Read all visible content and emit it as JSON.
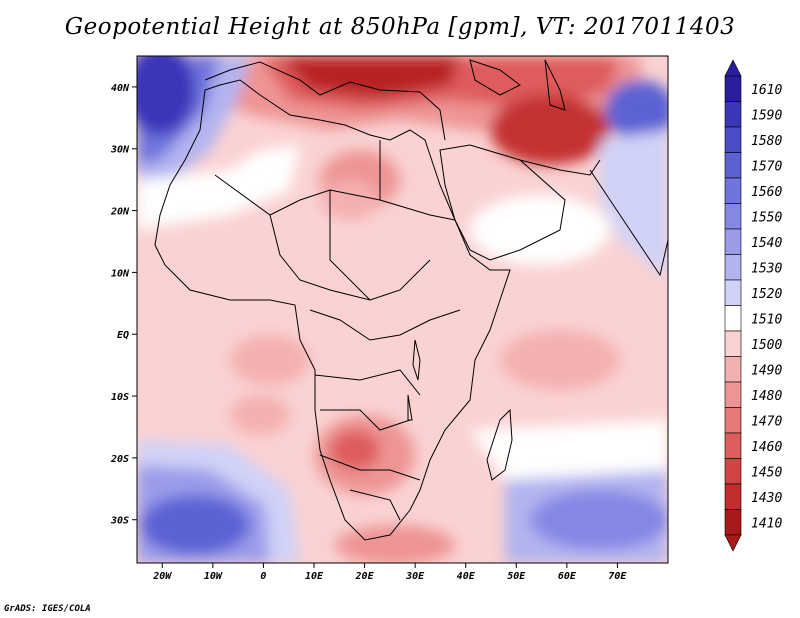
{
  "title": "Geopotential Height at 850hPa [gpm], VT: 2017011403",
  "credit": "GrADS: IGES/COLA",
  "map": {
    "lon_range": [
      -25,
      80
    ],
    "lat_range": [
      -37,
      45
    ],
    "lon_ticks": [
      "20W",
      "10W",
      "0",
      "10E",
      "20E",
      "30E",
      "40E",
      "50E",
      "60E",
      "70E"
    ],
    "lat_ticks": [
      "40N",
      "30N",
      "20N",
      "10N",
      "EQ",
      "10S",
      "20S",
      "30S"
    ]
  },
  "colorbar": {
    "levels": [
      "1610",
      "1590",
      "1580",
      "1570",
      "1560",
      "1550",
      "1540",
      "1530",
      "1520",
      "1510",
      "1500",
      "1490",
      "1480",
      "1470",
      "1460",
      "1450",
      "1430",
      "1410"
    ],
    "colors": [
      "#2a1e9e",
      "#3a36b8",
      "#4a4cc8",
      "#5c62d4",
      "#7074dc",
      "#8488e4",
      "#9a9cea",
      "#b2b4f0",
      "#d0d2f8",
      "#ffffff",
      "#fad2d2",
      "#f4b0b0",
      "#ee9494",
      "#e67878",
      "#de5c5c",
      "#d04444",
      "#c02e2e",
      "#a81a1a"
    ]
  }
}
